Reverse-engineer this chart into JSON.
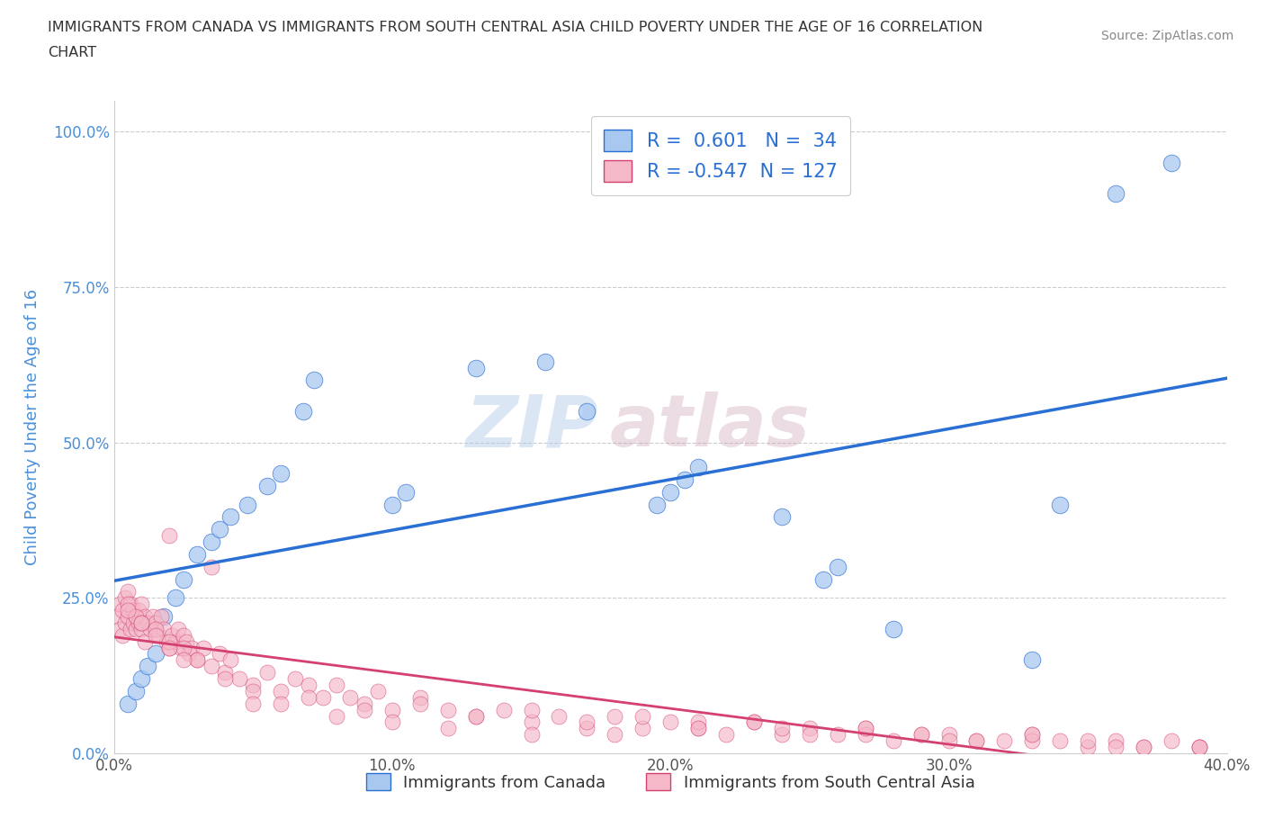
{
  "title_line1": "IMMIGRANTS FROM CANADA VS IMMIGRANTS FROM SOUTH CENTRAL ASIA CHILD POVERTY UNDER THE AGE OF 16 CORRELATION",
  "title_line2": "CHART",
  "source": "Source: ZipAtlas.com",
  "ylabel": "Child Poverty Under the Age of 16",
  "xlabel_blue": "Immigrants from Canada",
  "xlabel_pink": "Immigrants from South Central Asia",
  "R_blue": 0.601,
  "N_blue": 34,
  "R_pink": -0.547,
  "N_pink": 127,
  "xlim": [
    0.0,
    0.4
  ],
  "ylim": [
    0.0,
    1.05
  ],
  "yticks": [
    0.0,
    0.25,
    0.5,
    0.75,
    1.0
  ],
  "ytick_labels": [
    "0.0%",
    "25.0%",
    "50.0%",
    "75.0%",
    "100.0%"
  ],
  "xticks": [
    0.0,
    0.1,
    0.2,
    0.3,
    0.4
  ],
  "xtick_labels": [
    "0.0%",
    "10.0%",
    "20.0%",
    "30.0%",
    "40.0%"
  ],
  "watermark_zip": "ZIP",
  "watermark_atlas": "atlas",
  "blue_color": "#a8c8f0",
  "pink_color": "#f4b8c8",
  "trendline_blue": "#2a6fd4",
  "trendline_pink": "#d44070",
  "grid_color": "#cccccc",
  "blue_scatter_x": [
    0.005,
    0.008,
    0.01,
    0.012,
    0.015,
    0.018,
    0.022,
    0.025,
    0.03,
    0.035,
    0.038,
    0.042,
    0.048,
    0.055,
    0.06,
    0.068,
    0.072,
    0.1,
    0.105,
    0.13,
    0.155,
    0.17,
    0.195,
    0.2,
    0.205,
    0.21,
    0.24,
    0.255,
    0.26,
    0.28,
    0.33,
    0.34,
    0.36,
    0.38
  ],
  "blue_scatter_y": [
    0.08,
    0.1,
    0.12,
    0.14,
    0.16,
    0.22,
    0.25,
    0.28,
    0.32,
    0.34,
    0.36,
    0.38,
    0.4,
    0.43,
    0.45,
    0.55,
    0.6,
    0.4,
    0.42,
    0.62,
    0.63,
    0.55,
    0.4,
    0.42,
    0.44,
    0.46,
    0.38,
    0.28,
    0.3,
    0.2,
    0.15,
    0.4,
    0.9,
    0.95
  ],
  "pink_scatter_x": [
    0.001,
    0.002,
    0.002,
    0.003,
    0.003,
    0.004,
    0.004,
    0.005,
    0.005,
    0.006,
    0.006,
    0.007,
    0.007,
    0.008,
    0.008,
    0.009,
    0.009,
    0.01,
    0.01,
    0.011,
    0.011,
    0.012,
    0.013,
    0.014,
    0.015,
    0.016,
    0.017,
    0.018,
    0.019,
    0.02,
    0.021,
    0.022,
    0.023,
    0.024,
    0.025,
    0.026,
    0.027,
    0.028,
    0.03,
    0.032,
    0.035,
    0.038,
    0.04,
    0.042,
    0.045,
    0.05,
    0.055,
    0.06,
    0.065,
    0.07,
    0.075,
    0.08,
    0.085,
    0.09,
    0.095,
    0.1,
    0.11,
    0.12,
    0.13,
    0.14,
    0.15,
    0.16,
    0.17,
    0.18,
    0.19,
    0.2,
    0.21,
    0.22,
    0.23,
    0.24,
    0.25,
    0.26,
    0.27,
    0.28,
    0.29,
    0.3,
    0.31,
    0.32,
    0.33,
    0.34,
    0.35,
    0.36,
    0.37,
    0.38,
    0.39,
    0.005,
    0.008,
    0.01,
    0.015,
    0.02,
    0.025,
    0.03,
    0.04,
    0.05,
    0.06,
    0.08,
    0.1,
    0.12,
    0.15,
    0.18,
    0.21,
    0.24,
    0.27,
    0.3,
    0.33,
    0.36,
    0.39,
    0.02,
    0.035,
    0.05,
    0.07,
    0.09,
    0.11,
    0.13,
    0.15,
    0.17,
    0.19,
    0.21,
    0.23,
    0.25,
    0.27,
    0.29,
    0.31,
    0.33,
    0.35,
    0.37,
    0.39,
    0.005,
    0.01,
    0.015,
    0.02,
    0.025
  ],
  "pink_scatter_y": [
    0.22,
    0.2,
    0.24,
    0.19,
    0.23,
    0.21,
    0.25,
    0.22,
    0.26,
    0.2,
    0.24,
    0.21,
    0.23,
    0.22,
    0.2,
    0.23,
    0.21,
    0.24,
    0.2,
    0.22,
    0.18,
    0.21,
    0.2,
    0.22,
    0.21,
    0.19,
    0.22,
    0.2,
    0.18,
    0.17,
    0.19,
    0.18,
    0.2,
    0.17,
    0.19,
    0.18,
    0.16,
    0.17,
    0.15,
    0.17,
    0.14,
    0.16,
    0.13,
    0.15,
    0.12,
    0.11,
    0.13,
    0.1,
    0.12,
    0.11,
    0.09,
    0.11,
    0.09,
    0.08,
    0.1,
    0.07,
    0.09,
    0.07,
    0.06,
    0.07,
    0.05,
    0.06,
    0.04,
    0.06,
    0.04,
    0.05,
    0.04,
    0.03,
    0.05,
    0.03,
    0.04,
    0.03,
    0.04,
    0.02,
    0.03,
    0.03,
    0.02,
    0.02,
    0.03,
    0.02,
    0.01,
    0.02,
    0.01,
    0.02,
    0.01,
    0.24,
    0.22,
    0.21,
    0.2,
    0.18,
    0.17,
    0.15,
    0.12,
    0.1,
    0.08,
    0.06,
    0.05,
    0.04,
    0.03,
    0.03,
    0.05,
    0.04,
    0.03,
    0.02,
    0.02,
    0.01,
    0.01,
    0.35,
    0.3,
    0.08,
    0.09,
    0.07,
    0.08,
    0.06,
    0.07,
    0.05,
    0.06,
    0.04,
    0.05,
    0.03,
    0.04,
    0.03,
    0.02,
    0.03,
    0.02,
    0.01,
    0.01,
    0.23,
    0.21,
    0.19,
    0.17,
    0.15
  ]
}
